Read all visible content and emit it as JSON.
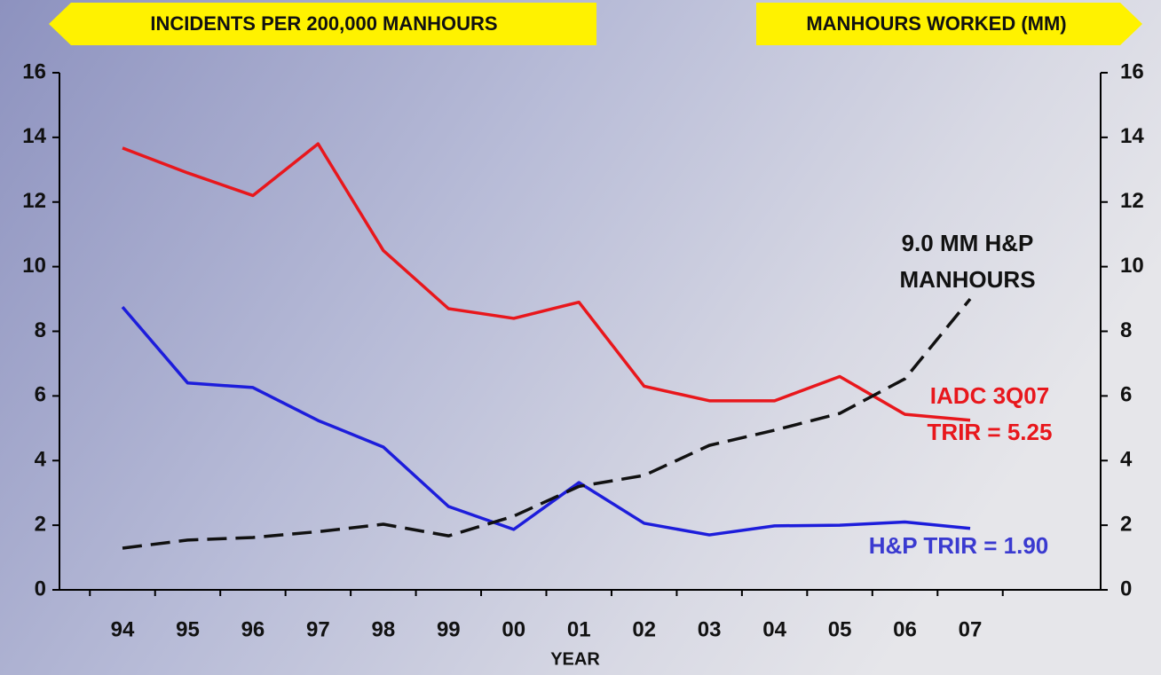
{
  "chart_data": {
    "type": "line",
    "ylabel": "INCIDENTS  PER 200,000 MANHOURS",
    "y2label": "MANHOURS WORKED (MM)",
    "xlabel": "YEAR",
    "categories": [
      "94",
      "95",
      "96",
      "97",
      "98",
      "99",
      "00",
      "01",
      "02",
      "03",
      "04",
      "05",
      "06",
      "07"
    ],
    "series": [
      {
        "color": "#e8171c",
        "dashed": false,
        "axis": "y",
        "values": [
          13.67,
          12.9,
          12.2,
          13.8,
          10.5,
          8.7,
          8.4,
          8.9,
          6.3,
          5.85,
          5.85,
          6.6,
          5.43,
          5.25
        ]
      },
      {
        "color": "#1d1ddb",
        "dashed": false,
        "axis": "y",
        "values": [
          8.75,
          6.4,
          6.26,
          5.24,
          4.42,
          2.58,
          1.87,
          3.32,
          2.06,
          1.7,
          1.98,
          2.0,
          2.1,
          1.9
        ]
      },
      {
        "color": "#111111",
        "dashed": true,
        "axis": "y2",
        "values": [
          1.29,
          1.54,
          1.62,
          1.8,
          2.03,
          1.67,
          2.28,
          3.2,
          3.54,
          4.47,
          4.94,
          5.46,
          6.53,
          9.0
        ]
      }
    ],
    "ylim": [
      0,
      16
    ],
    "yticks": [
      0,
      2,
      4,
      6,
      8,
      10,
      12,
      14,
      16
    ],
    "y2lim": [
      0,
      16
    ],
    "y2ticks": [
      0,
      2,
      4,
      6,
      8,
      10,
      12,
      14,
      16
    ],
    "annotations": [
      {
        "lines": [
          "9.0 MM H&P",
          "MANHOURS"
        ],
        "color": "#111111"
      },
      {
        "lines": [
          "IADC 3Q07",
          "TRIR = 5.25"
        ],
        "color": "#e8171c"
      },
      {
        "lines": [
          "H&P TRIR = 1.90"
        ],
        "color": "#3a3ad0"
      }
    ]
  }
}
